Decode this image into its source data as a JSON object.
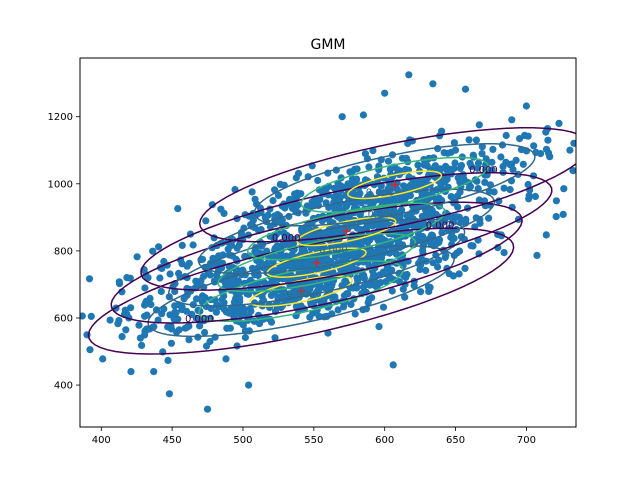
{
  "chart_data": {
    "type": "scatter",
    "title": "GMM",
    "xlabel": "",
    "ylabel": "",
    "xlim": [
      385,
      735
    ],
    "ylim": [
      275,
      1375
    ],
    "x_ticks": [
      400,
      450,
      500,
      550,
      600,
      650,
      700
    ],
    "y_ticks": [
      400,
      600,
      800,
      1000,
      1200
    ],
    "grid": false,
    "legend": "none",
    "point_color": "#1f77b4",
    "center_color": "#d62728",
    "contour_colors": [
      "#440154",
      "#31688e",
      "#35b779",
      "#fde725"
    ],
    "contour_label_text": "0.000",
    "components": [
      {
        "center": [
          541,
          680
        ],
        "std": [
          60,
          75
        ],
        "corr": 0.7
      },
      {
        "center": [
          552,
          765
        ],
        "std": [
          58,
          72
        ],
        "corr": 0.7
      },
      {
        "center": [
          573,
          858
        ],
        "std": [
          58,
          70
        ],
        "corr": 0.7
      },
      {
        "center": [
          607,
          997
        ],
        "std": [
          55,
          68
        ],
        "corr": 0.68
      }
    ],
    "point_count": 1600,
    "outliers": [
      [
        401,
        478
      ],
      [
        418,
        612
      ],
      [
        421,
        440
      ],
      [
        433,
        720
      ],
      [
        437,
        440
      ],
      [
        475,
        328
      ],
      [
        488,
        478
      ],
      [
        504,
        400
      ],
      [
        606,
        460
      ],
      [
        617,
        1325
      ],
      [
        700,
        1232
      ],
      [
        723,
        1180
      ],
      [
        657,
        1282
      ],
      [
        600,
        1270
      ],
      [
        454,
        926
      ],
      [
        560,
        555
      ],
      [
        508,
        590
      ],
      [
        690,
        930
      ],
      [
        710,
        1090
      ],
      [
        463,
        850
      ],
      [
        570,
        1200
      ],
      [
        682,
        1080
      ],
      [
        634,
        1298
      ],
      [
        585,
        1205
      ]
    ]
  }
}
